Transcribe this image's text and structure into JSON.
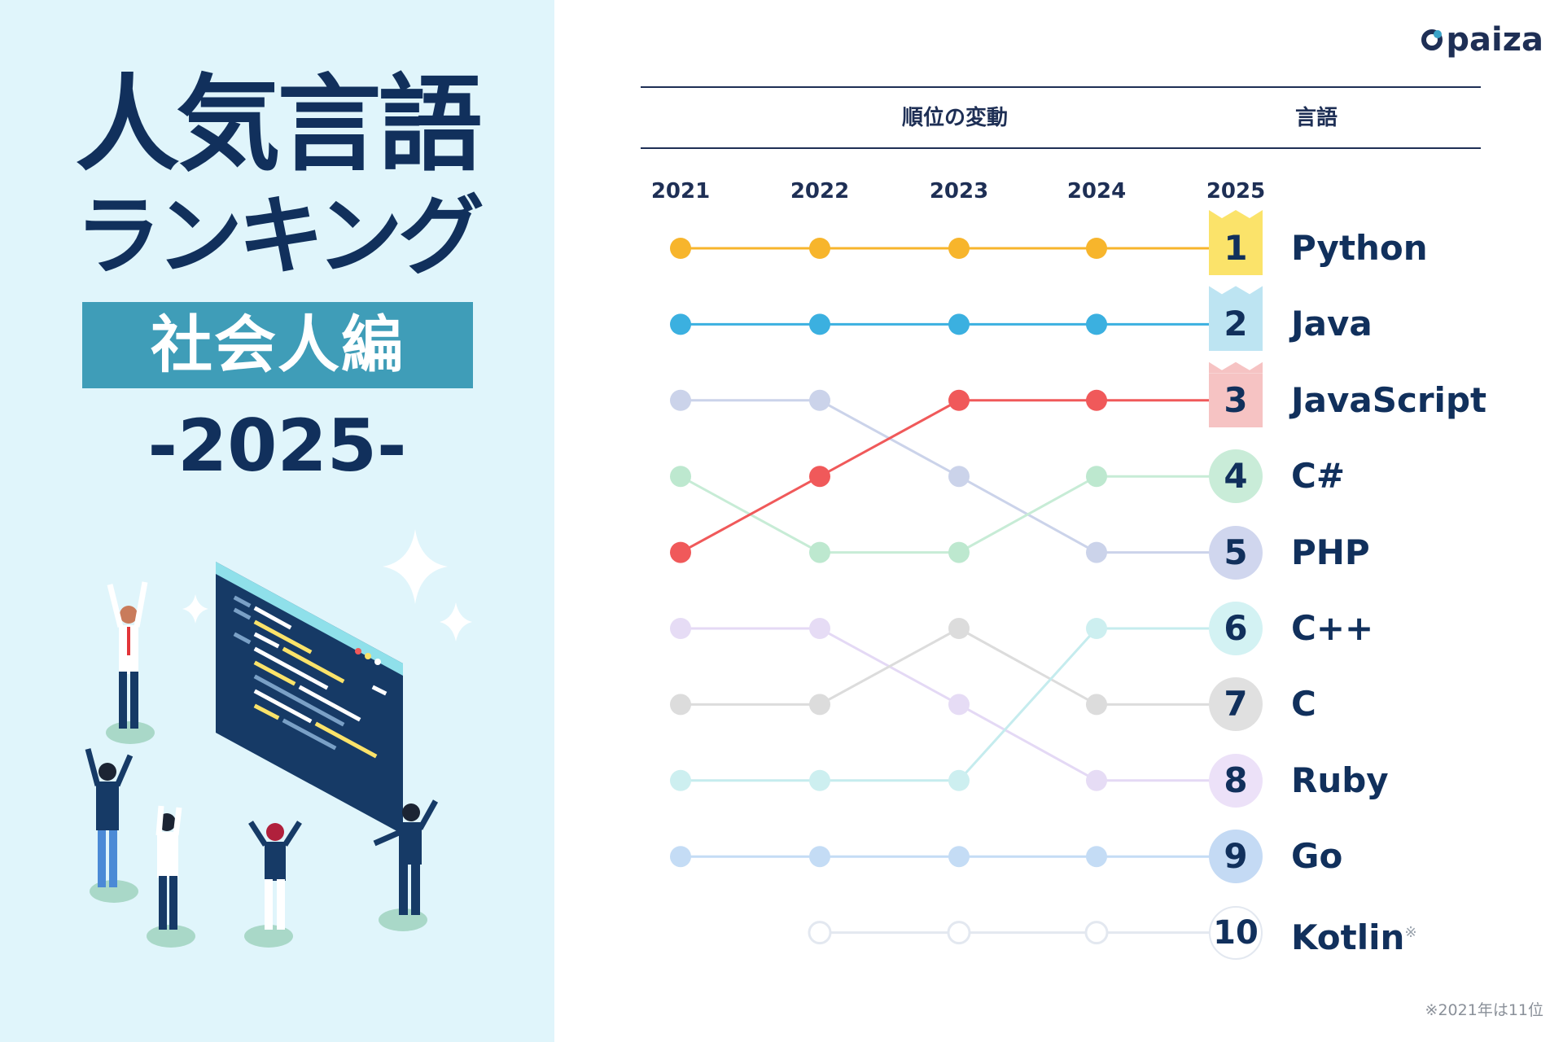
{
  "header": {
    "title_line1": "人気言語",
    "title_line2": "ランキング",
    "edition": "社会人編",
    "year": "-2025-",
    "logo": "paiza"
  },
  "table_headers": {
    "change": "順位の変動",
    "language": "言語"
  },
  "footnote": "※2021年は11位",
  "colors": {
    "python": "#f7b52c",
    "java": "#3bb0e0",
    "javascript": "#f0595a",
    "csharp": "#bde8cf",
    "php": "#cbd3ea",
    "cpp": "#cdeff0",
    "c": "#dcdcdc",
    "ruby": "#e6dcf5",
    "go": "#c4dcf5",
    "kotlin": "#e3e8f0"
  },
  "chart_data": {
    "type": "line",
    "title": "人気言語ランキング 社会人編 2025",
    "xlabel": "順位の変動",
    "years": [
      "2021",
      "2022",
      "2023",
      "2024",
      "2025"
    ],
    "series": [
      {
        "name": "Python",
        "ranks": [
          1,
          1,
          1,
          1,
          1
        ],
        "color": "#f7b52c",
        "line": "#f7b52c",
        "badge": "#fbe36a",
        "badge_shape": "crown",
        "final_rank": "1"
      },
      {
        "name": "Java",
        "ranks": [
          2,
          2,
          2,
          2,
          2
        ],
        "color": "#3bb0e0",
        "line": "#3bb0e0",
        "badge": "#bde4f2",
        "badge_shape": "crown",
        "final_rank": "2"
      },
      {
        "name": "JavaScript",
        "ranks": [
          5,
          4,
          3,
          3,
          3
        ],
        "color": "#f0595a",
        "line": "#f0595a",
        "badge": "#f6c3c3",
        "badge_shape": "crown",
        "final_rank": "3"
      },
      {
        "name": "C#",
        "ranks": [
          4,
          5,
          5,
          4,
          4
        ],
        "color": "#bde8cf",
        "line": "#c7ecd6",
        "badge": "#c9ecd8",
        "badge_shape": "circle",
        "final_rank": "4"
      },
      {
        "name": "PHP",
        "ranks": [
          3,
          3,
          4,
          5,
          5
        ],
        "color": "#cbd3ea",
        "line": "#cbd3ea",
        "badge": "#d0d6ee",
        "badge_shape": "circle",
        "final_rank": "5"
      },
      {
        "name": "C++",
        "ranks": [
          8,
          8,
          8,
          6,
          6
        ],
        "color": "#cdeff0",
        "line": "#c5ecee",
        "badge": "#d3f2f3",
        "badge_shape": "circle",
        "final_rank": "6"
      },
      {
        "name": "C",
        "ranks": [
          7,
          7,
          6,
          7,
          7
        ],
        "color": "#dcdcdc",
        "line": "#dcdcdc",
        "badge": "#e0e0e0",
        "badge_shape": "circle",
        "final_rank": "7"
      },
      {
        "name": "Ruby",
        "ranks": [
          6,
          6,
          7,
          8,
          8
        ],
        "color": "#e6dcf5",
        "line": "#e4d9f5",
        "badge": "#ece1f8",
        "badge_shape": "circle",
        "final_rank": "8"
      },
      {
        "name": "Go",
        "ranks": [
          9,
          9,
          9,
          9,
          9
        ],
        "color": "#c4dcf5",
        "line": "#c4dcf5",
        "badge": "#c4daf4",
        "badge_shape": "circle",
        "final_rank": "9"
      },
      {
        "name": "Kotlin",
        "ranks": [
          null,
          10,
          10,
          10,
          10
        ],
        "color": "#e3e8f0",
        "line": "#e3e8f0",
        "badge": "#ffffff",
        "badge_shape": "circle-outline",
        "final_rank": "10",
        "note_mark": "※"
      }
    ]
  }
}
